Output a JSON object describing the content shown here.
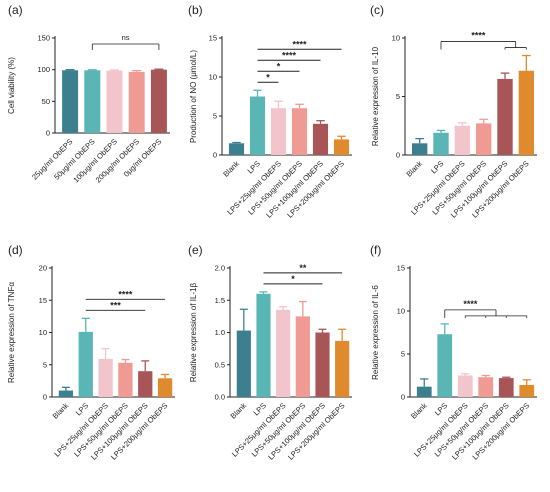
{
  "chart_data": [
    {
      "panel": "(a)",
      "type": "bar",
      "ylabel": "Cell viability (%)",
      "ylim": [
        0,
        150
      ],
      "yticks": [
        0,
        50,
        100,
        150
      ],
      "categories": [
        "25μg/ml ObEPS",
        "50μg/ml ObEPS",
        "100μg/ml ObEPS",
        "200μg/ml ObEPS",
        "0μg/ml ObEPS"
      ],
      "values": [
        99,
        99,
        98.5,
        96.5,
        100
      ],
      "errors": [
        1,
        0.8,
        1,
        2,
        0.8
      ],
      "colors": [
        "#3c7f8f",
        "#5ab5b5",
        "#f2c4cb",
        "#f09a94",
        "#a85557"
      ],
      "annotations": [
        {
          "label": "ns",
          "type": "bracket",
          "from": 1,
          "to": 4
        }
      ]
    },
    {
      "panel": "(b)",
      "type": "bar",
      "ylabel": "Production of NO (μmol/L)",
      "ylim": [
        0,
        15
      ],
      "yticks": [
        0,
        5,
        10,
        15
      ],
      "categories": [
        "Blank",
        "LPS",
        "LPS+25μg/ml ObEPS",
        "LPS+50μg/ml ObEPS",
        "LPS+100μg/ml ObEPS",
        "LPS+200μg/ml ObEPS"
      ],
      "values": [
        1.5,
        7.5,
        6.0,
        6.0,
        4.0,
        2.0
      ],
      "errors": [
        0.1,
        0.8,
        0.9,
        0.5,
        0.4,
        0.4
      ],
      "colors": [
        "#3c7f8f",
        "#5ab5b5",
        "#f2c4cb",
        "#f09a94",
        "#a85557",
        "#e08a2e"
      ],
      "annotations": [
        {
          "label": "*",
          "from": 1,
          "to": 2
        },
        {
          "label": "*",
          "from": 1,
          "to": 3
        },
        {
          "label": "****",
          "from": 1,
          "to": 4
        },
        {
          "label": "****",
          "from": 1,
          "to": 5
        }
      ]
    },
    {
      "panel": "(c)",
      "type": "bar",
      "ylabel": "Relative expression of IL-10",
      "ylim": [
        0,
        10
      ],
      "yticks": [
        0,
        5,
        10
      ],
      "categories": [
        "Blank",
        "LPS",
        "LPS+25μg/ml ObEPS",
        "LPS+50μg/ml ObEPS",
        "LPS+100μg/ml ObEPS",
        "LPS+200μg/ml ObEPS"
      ],
      "values": [
        1.0,
        1.9,
        2.5,
        2.7,
        6.5,
        7.2
      ],
      "errors": [
        0.4,
        0.2,
        0.25,
        0.35,
        0.5,
        1.3
      ],
      "colors": [
        "#3c7f8f",
        "#5ab5b5",
        "#f2c4cb",
        "#f09a94",
        "#a85557",
        "#e08a2e"
      ],
      "annotations": [
        {
          "label": "****",
          "type": "group",
          "from": 1,
          "to": [
            4,
            5
          ]
        }
      ]
    },
    {
      "panel": "(d)",
      "type": "bar",
      "ylabel": "Relative expression of TNFα",
      "ylim": [
        0,
        20
      ],
      "yticks": [
        0,
        5,
        10,
        15,
        20
      ],
      "categories": [
        "Blank",
        "LPS",
        "LPS+25μg/ml ObEPS",
        "LPS+50μg/ml ObEPS",
        "LPS+100μg/ml ObEPS",
        "LPS+200μg/ml ObEPS"
      ],
      "values": [
        1.0,
        10.1,
        5.9,
        5.3,
        4.0,
        2.9
      ],
      "errors": [
        0.5,
        2.1,
        1.6,
        0.5,
        1.6,
        0.6
      ],
      "colors": [
        "#3c7f8f",
        "#5ab5b5",
        "#f2c4cb",
        "#f09a94",
        "#a85557",
        "#e08a2e"
      ],
      "annotations": [
        {
          "label": "***",
          "from": 1,
          "to": 4
        },
        {
          "label": "****",
          "from": 1,
          "to": 5
        }
      ]
    },
    {
      "panel": "(e)",
      "type": "bar",
      "ylabel": "Relative expression of IL-1β",
      "ylim": [
        0,
        2.0
      ],
      "yticks": [
        0.0,
        0.5,
        1.0,
        1.5,
        2.0
      ],
      "categories": [
        "Blank",
        "LPS",
        "LPS+25μg/ml ObEPS",
        "LPS+50μg/ml ObEPS",
        "LPS+100μg/ml ObEPS",
        "LPS+200μg/ml ObEPS"
      ],
      "values": [
        1.03,
        1.6,
        1.35,
        1.25,
        1.0,
        0.87
      ],
      "errors": [
        0.33,
        0.03,
        0.05,
        0.23,
        0.05,
        0.18
      ],
      "colors": [
        "#3c7f8f",
        "#5ab5b5",
        "#f2c4cb",
        "#f09a94",
        "#a85557",
        "#e08a2e"
      ],
      "annotations": [
        {
          "label": "*",
          "from": 1,
          "to": 4
        },
        {
          "label": "**",
          "from": 1,
          "to": 5
        }
      ]
    },
    {
      "panel": "(f)",
      "type": "bar",
      "ylabel": "Relative expression of IL-6",
      "ylim": [
        0,
        15
      ],
      "yticks": [
        0,
        5,
        10,
        15
      ],
      "categories": [
        "Blank",
        "LPS",
        "LPS+25μg/ml ObEPS",
        "LPS+50μg/ml ObEPS",
        "LPS+100μg/ml ObEPS",
        "LPS+200μg/ml ObEPS"
      ],
      "values": [
        1.2,
        7.3,
        2.5,
        2.3,
        2.2,
        1.4
      ],
      "errors": [
        0.9,
        1.2,
        0.2,
        0.2,
        0.1,
        0.6
      ],
      "colors": [
        "#3c7f8f",
        "#5ab5b5",
        "#f2c4cb",
        "#f09a94",
        "#a85557",
        "#e08a2e"
      ],
      "annotations": [
        {
          "label": "****",
          "type": "group",
          "from": 1,
          "to": [
            2,
            3,
            4,
            5
          ]
        }
      ]
    }
  ]
}
